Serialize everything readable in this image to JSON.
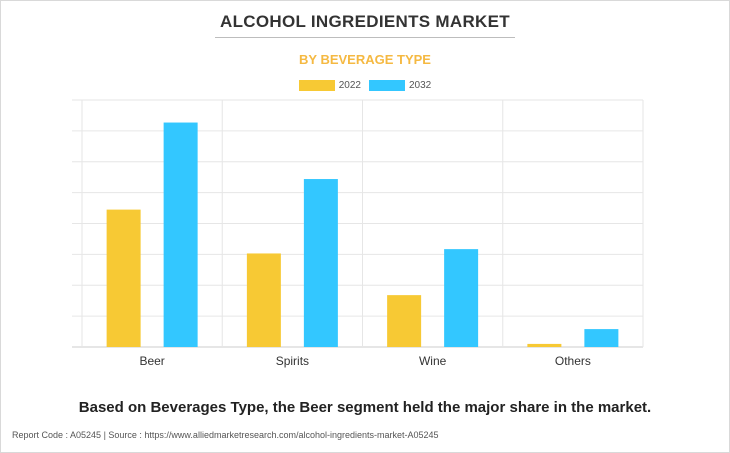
{
  "header": {
    "title": "ALCOHOL INGREDIENTS MARKET",
    "subtitle": "BY BEVERAGE TYPE"
  },
  "chart_data": {
    "type": "bar",
    "categories": [
      "Beer",
      "Spirits",
      "Wine",
      "Others"
    ],
    "series": [
      {
        "name": "2022",
        "color": "#f7c934",
        "values": [
          44.5,
          30.3,
          16.8,
          1.0
        ]
      },
      {
        "name": "2032",
        "color": "#33c7ff",
        "values": [
          72.7,
          54.4,
          31.7,
          5.8
        ]
      }
    ],
    "ylim": [
      0,
      80
    ],
    "grid": true,
    "legend_position": "top-center"
  },
  "footer": {
    "caption": "Based on Beverages Type, the Beer segment held the major share in the market.",
    "source": "Report Code : A05245  |  Source : https://www.alliedmarketresearch.com/alcohol-ingredients-market-A05245"
  }
}
